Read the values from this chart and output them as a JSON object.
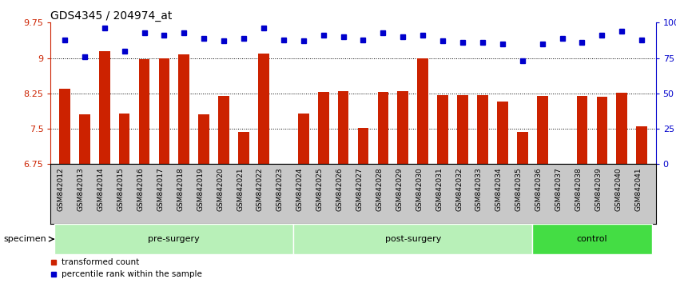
{
  "title": "GDS4345 / 204974_at",
  "samples": [
    "GSM842012",
    "GSM842013",
    "GSM842014",
    "GSM842015",
    "GSM842016",
    "GSM842017",
    "GSM842018",
    "GSM842019",
    "GSM842020",
    "GSM842021",
    "GSM842022",
    "GSM842023",
    "GSM842024",
    "GSM842025",
    "GSM842026",
    "GSM842027",
    "GSM842028",
    "GSM842029",
    "GSM842030",
    "GSM842031",
    "GSM842032",
    "GSM842033",
    "GSM842034",
    "GSM842035",
    "GSM842036",
    "GSM842037",
    "GSM842038",
    "GSM842039",
    "GSM842040",
    "GSM842041"
  ],
  "bar_values": [
    8.35,
    7.8,
    9.15,
    7.83,
    8.98,
    9.0,
    9.07,
    7.8,
    8.19,
    7.43,
    9.1,
    6.75,
    7.83,
    8.28,
    8.3,
    7.52,
    8.28,
    8.3,
    9.0,
    8.22,
    8.22,
    8.21,
    8.08,
    7.44,
    8.2,
    6.75,
    8.2,
    8.18,
    8.27,
    7.56
  ],
  "blue_values": [
    88,
    76,
    96,
    80,
    93,
    91,
    93,
    89,
    87,
    89,
    96,
    88,
    87,
    91,
    90,
    88,
    93,
    90,
    91,
    87,
    86,
    86,
    85,
    73,
    85,
    89,
    86,
    91,
    94,
    88
  ],
  "groups": [
    {
      "label": "pre-surgery",
      "start": 0,
      "end": 12,
      "color": "#c0f0c0"
    },
    {
      "label": "post-surgery",
      "start": 12,
      "end": 24,
      "color": "#c0f0c0"
    },
    {
      "label": "control",
      "start": 24,
      "end": 30,
      "color": "#44dd44"
    }
  ],
  "ylim_left": [
    6.75,
    9.75
  ],
  "ylim_right": [
    0,
    100
  ],
  "yticks_left": [
    6.75,
    7.5,
    8.25,
    9.0,
    9.75
  ],
  "ytick_labels_left": [
    "6.75",
    "7.5",
    "8.25",
    "9",
    "9.75"
  ],
  "yticks_right": [
    0,
    25,
    50,
    75,
    100
  ],
  "ytick_labels_right": [
    "0",
    "25",
    "50",
    "75",
    "100%"
  ],
  "bar_color": "#cc2200",
  "dot_color": "#0000cc",
  "grid_lines": [
    7.5,
    8.25,
    9.0
  ],
  "bar_width": 0.55,
  "tick_bg_color": "#c8c8c8",
  "presurg_color": "#b8f0b8",
  "postsurg_color": "#b8f0b8",
  "control_color": "#44dd44",
  "border_color": "#000000"
}
